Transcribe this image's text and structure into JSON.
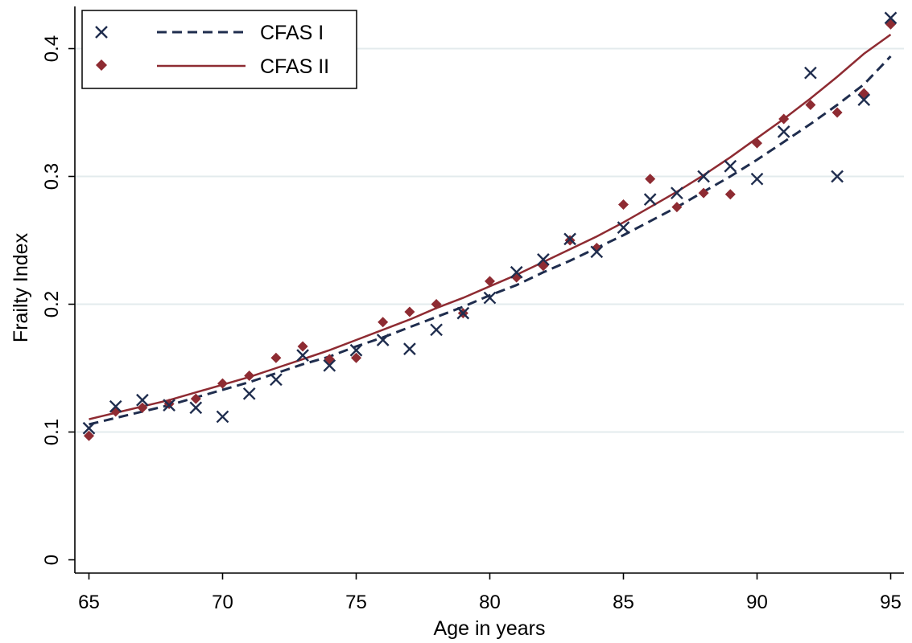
{
  "chart_data": {
    "type": "scatter",
    "xlabel": "Age in years",
    "ylabel": "Frailty Index",
    "xlim": [
      65,
      95
    ],
    "ylim": [
      0,
      0.42
    ],
    "x_ticks": [
      "65",
      "70",
      "75",
      "80",
      "85",
      "90",
      "95"
    ],
    "y_ticks": [
      "0",
      "0.1",
      "0.2",
      "0.3",
      "0.4"
    ],
    "grid": "horizontal",
    "legend_position": "top-left",
    "series": [
      {
        "name": "CFAS I",
        "color": "#1f2d4e",
        "marker": "x",
        "x": [
          65,
          66,
          67,
          68,
          69,
          70,
          71,
          72,
          73,
          74,
          75,
          76,
          77,
          78,
          79,
          80,
          81,
          82,
          83,
          84,
          85,
          86,
          87,
          88,
          89,
          90,
          91,
          92,
          93,
          94,
          95
        ],
        "y": [
          0.103,
          0.12,
          0.125,
          0.121,
          0.119,
          0.112,
          0.13,
          0.141,
          0.16,
          0.152,
          0.164,
          0.172,
          0.165,
          0.18,
          0.193,
          0.205,
          0.225,
          0.235,
          0.251,
          0.241,
          0.26,
          0.282,
          0.287,
          0.3,
          0.308,
          0.298,
          0.335,
          0.381,
          0.3,
          0.36,
          0.424
        ]
      },
      {
        "name": "CFAS II",
        "color": "#8e2b32",
        "marker": "diamond",
        "x": [
          65,
          66,
          67,
          68,
          69,
          70,
          71,
          72,
          73,
          74,
          75,
          76,
          77,
          78,
          79,
          80,
          81,
          82,
          83,
          84,
          85,
          86,
          87,
          88,
          89,
          90,
          91,
          92,
          93,
          94,
          95
        ],
        "y": [
          0.097,
          0.116,
          0.119,
          0.122,
          0.126,
          0.138,
          0.144,
          0.158,
          0.167,
          0.157,
          0.158,
          0.186,
          0.194,
          0.2,
          0.193,
          0.218,
          0.221,
          0.23,
          0.25,
          0.244,
          0.278,
          0.298,
          0.276,
          0.287,
          0.286,
          0.326,
          0.345,
          0.356,
          0.35,
          0.365,
          0.419
        ]
      }
    ],
    "fit_lines": [
      {
        "name": "CFAS I",
        "style": "dashed",
        "color": "#1f2d4e",
        "x": [
          65,
          66,
          67,
          68,
          69,
          70,
          71,
          72,
          73,
          74,
          75,
          76,
          77,
          78,
          79,
          80,
          81,
          82,
          83,
          84,
          85,
          86,
          87,
          88,
          89,
          90,
          91,
          92,
          93,
          94,
          95
        ],
        "y": [
          0.106,
          0.111,
          0.116,
          0.121,
          0.127,
          0.133,
          0.139,
          0.146,
          0.153,
          0.159,
          0.167,
          0.174,
          0.182,
          0.19,
          0.198,
          0.207,
          0.215,
          0.225,
          0.234,
          0.244,
          0.254,
          0.265,
          0.276,
          0.288,
          0.3,
          0.313,
          0.327,
          0.341,
          0.356,
          0.372,
          0.394
        ]
      },
      {
        "name": "CFAS II",
        "style": "solid",
        "color": "#8e2b32",
        "x": [
          65,
          66,
          67,
          68,
          69,
          70,
          71,
          72,
          73,
          74,
          75,
          76,
          77,
          78,
          79,
          80,
          81,
          82,
          83,
          84,
          85,
          86,
          87,
          88,
          89,
          90,
          91,
          92,
          93,
          94,
          95
        ],
        "y": [
          0.11,
          0.115,
          0.12,
          0.125,
          0.131,
          0.137,
          0.143,
          0.15,
          0.157,
          0.164,
          0.172,
          0.18,
          0.188,
          0.197,
          0.205,
          0.214,
          0.223,
          0.233,
          0.243,
          0.253,
          0.264,
          0.276,
          0.288,
          0.301,
          0.315,
          0.33,
          0.345,
          0.361,
          0.378,
          0.396,
          0.411
        ]
      }
    ]
  }
}
